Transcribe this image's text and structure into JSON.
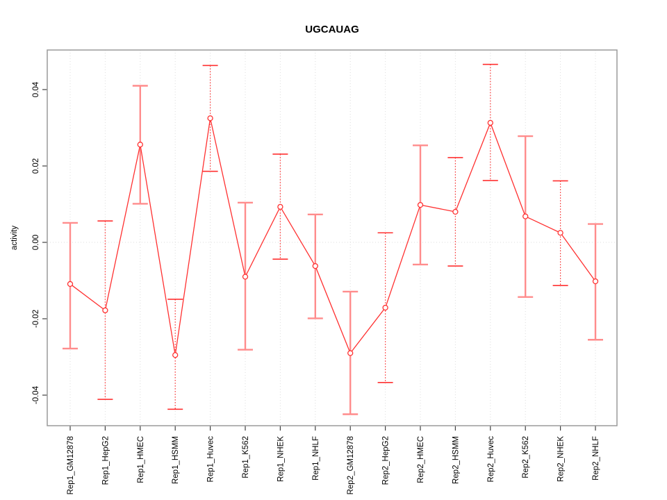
{
  "title": "UGCAUAG",
  "colors": {
    "point_line_red": "#ff3030",
    "solid_bar_salmon": "#ff8c8c",
    "grid_gray": "#dcdcdc",
    "frame_gray": "#9a9a9a",
    "tick_dark": "#404040",
    "background": "#ffffff"
  },
  "chart_data": {
    "type": "line",
    "subtype": "points-with-error-bars",
    "title": "UGCAUAG",
    "xlabel": "",
    "ylabel": "activity",
    "ylim": [
      -0.048,
      0.0504
    ],
    "yticks": [
      0.04,
      0.02,
      0,
      -0.02,
      -0.04
    ],
    "ytick_labels": [
      "0.04",
      "0.02",
      "0.00",
      "-0.02",
      "-0.04"
    ],
    "grid": "light dotted vertical line at each category; light dotted horizontal line at y=0",
    "legend": "none",
    "categories": [
      "Rep1_GM12878",
      "Rep1_HepG2",
      "Rep1_HMEC",
      "Rep1_HSMM",
      "Rep1_Huvec",
      "Rep1_K562",
      "Rep1_NHEK",
      "Rep1_NHLF",
      "Rep2_GM12878",
      "Rep2_HepG2",
      "Rep2_HMEC",
      "Rep2_HSMM",
      "Rep2_Huvec",
      "Rep2_K562",
      "Rep2_NHEK",
      "Rep2_NHLF"
    ],
    "series": [
      {
        "name": "activity",
        "values": [
          -0.0109,
          -0.0178,
          0.0256,
          -0.0295,
          0.0325,
          -0.009,
          0.0093,
          -0.0062,
          -0.029,
          -0.0171,
          0.0098,
          0.008,
          0.0313,
          0.0068,
          0.0025,
          -0.0102
        ]
      }
    ],
    "error_high": [
      0.0051,
      0.0056,
      0.041,
      -0.0149,
      0.0463,
      0.0104,
      0.0231,
      0.0073,
      -0.0129,
      0.0025,
      0.0254,
      0.0222,
      0.0466,
      0.0278,
      0.0161,
      0.0048
    ],
    "error_low": [
      -0.0278,
      -0.0411,
      0.0101,
      -0.0437,
      0.0186,
      -0.0281,
      -0.0044,
      -0.0199,
      -0.045,
      -0.0367,
      -0.0058,
      -0.0062,
      0.0162,
      -0.0143,
      -0.0113,
      -0.0255
    ],
    "error_bar_styles": [
      "solid",
      "dotted",
      "solid",
      "dotted",
      "dotted",
      "solid",
      "dotted",
      "solid",
      "solid",
      "dotted",
      "solid",
      "dotted",
      "dotted",
      "solid",
      "dotted",
      "solid"
    ]
  }
}
